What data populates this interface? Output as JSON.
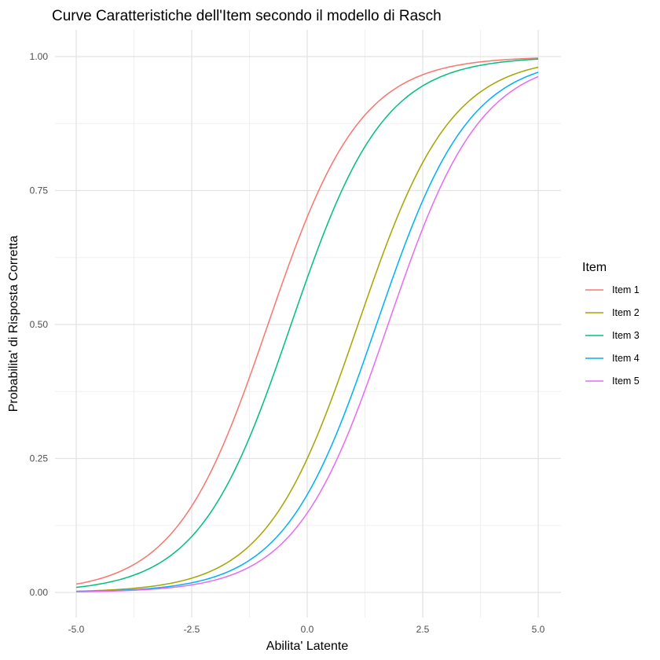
{
  "chart_data": {
    "type": "line",
    "title": "Curve Caratteristiche dell'Item secondo il modello di Rasch",
    "xlabel": "Abilita' Latente",
    "ylabel": "Probabilita' di Risposta Corretta",
    "xlim": [
      -5,
      5
    ],
    "ylim": [
      0,
      1
    ],
    "x_ticks": [
      -5,
      -2.5,
      0,
      2.5,
      5
    ],
    "x_tick_labels": [
      "-5.0",
      "-2.5",
      "0.0",
      "2.5",
      "5.0"
    ],
    "y_ticks": [
      0,
      0.25,
      0.5,
      0.75,
      1
    ],
    "y_tick_labels": [
      "0.00",
      "0.25",
      "0.50",
      "0.75",
      "1.00"
    ],
    "grid": true,
    "legend": {
      "title": "Item",
      "position": "right"
    },
    "model": "rasch",
    "series": [
      {
        "name": "Item 1",
        "difficulty": -0.85,
        "color": "#F8766D"
      },
      {
        "name": "Item 2",
        "difficulty": 1.1,
        "color": "#A3A500"
      },
      {
        "name": "Item 3",
        "difficulty": -0.35,
        "color": "#00BF7D"
      },
      {
        "name": "Item 4",
        "difficulty": 1.5,
        "color": "#00B0F6"
      },
      {
        "name": "Item 5",
        "difficulty": 1.75,
        "color": "#E76BF3"
      }
    ]
  }
}
